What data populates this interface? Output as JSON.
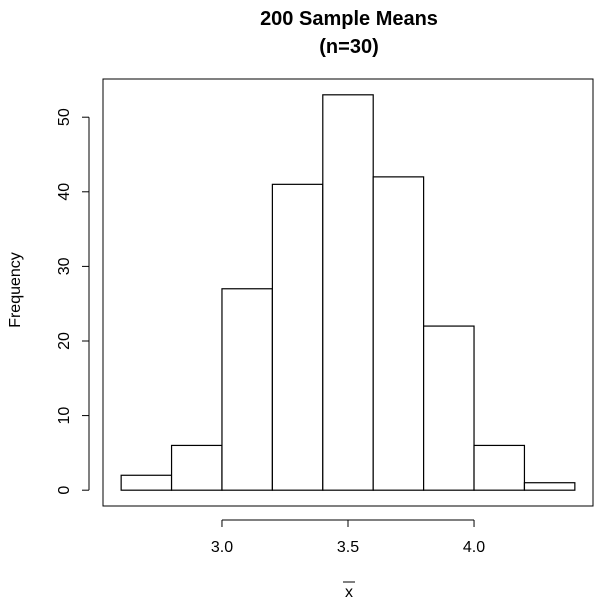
{
  "chart_data": {
    "type": "bar",
    "title_line1": "200 Sample Means",
    "title_line2": "(n=30)",
    "xlabel": "x",
    "ylabel": "Frequency",
    "bins": [
      {
        "start": 2.6,
        "end": 2.8,
        "count": 2
      },
      {
        "start": 2.8,
        "end": 3.0,
        "count": 6
      },
      {
        "start": 3.0,
        "end": 3.2,
        "count": 27
      },
      {
        "start": 3.2,
        "end": 3.4,
        "count": 41
      },
      {
        "start": 3.4,
        "end": 3.6,
        "count": 53
      },
      {
        "start": 3.6,
        "end": 3.8,
        "count": 42
      },
      {
        "start": 3.8,
        "end": 4.0,
        "count": 22
      },
      {
        "start": 4.0,
        "end": 4.2,
        "count": 6
      },
      {
        "start": 4.2,
        "end": 4.4,
        "count": 1
      }
    ],
    "xticks": [
      3.0,
      3.5,
      4.0
    ],
    "xtick_labels": [
      "3.0",
      "3.5",
      "4.0"
    ],
    "yticks": [
      0,
      10,
      20,
      30,
      40,
      50
    ],
    "ytick_labels": [
      "0",
      "10",
      "20",
      "30",
      "40",
      "50"
    ],
    "xlim": [
      2.528,
      4.472
    ],
    "ylim": [
      -2.12,
      55.12
    ],
    "grid": false,
    "legend": "none"
  }
}
